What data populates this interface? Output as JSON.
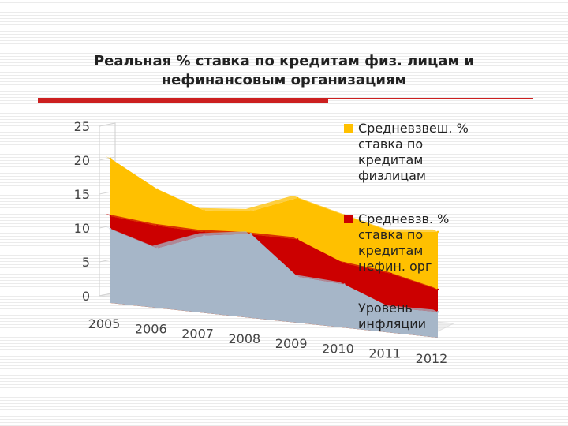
{
  "slide": {
    "title_line1": "Реальная % ставка по кредитам физ. лицам  и",
    "title_line2": "нефинансовым организациям"
  },
  "chart_data": {
    "type": "area",
    "categories": [
      "2005",
      "2006",
      "2007",
      "2008",
      "2009",
      "2010",
      "2011",
      "2012"
    ],
    "ylim": [
      0,
      25
    ],
    "yticks": [
      "0",
      "5",
      "10",
      "15",
      "20",
      "25"
    ],
    "series": [
      {
        "name": "Средневзвеш. % ставка по кредитам физлицам",
        "values": [
          21.3,
          17.5,
          15.1,
          15.7,
          18.4,
          16.6,
          14.9,
          15.6
        ],
        "color": "#ffc000"
      },
      {
        "name": "Средневзв. % ставка по кредитам нефин. орг",
        "values": [
          12.8,
          12.1,
          11.9,
          12.3,
          12.3,
          9.5,
          8.7,
          7.1
        ],
        "color": "#cc0000"
      },
      {
        "name": "Уровень инфляции",
        "values": [
          10.9,
          8.8,
          11.4,
          12.4,
          6.8,
          6.4,
          3.7,
          3.8
        ],
        "color": "#a6b6c8"
      }
    ]
  }
}
